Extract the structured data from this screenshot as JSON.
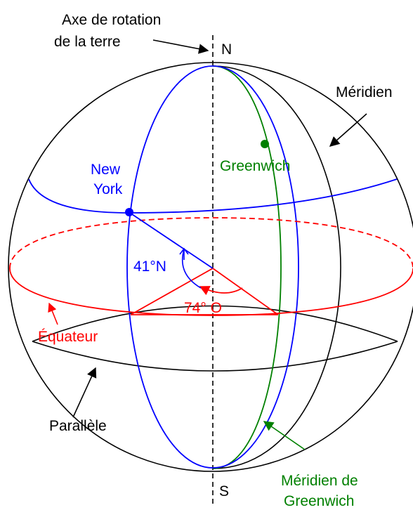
{
  "labels": {
    "axis_line1": "Axe de rotation",
    "axis_line2": "de la terre",
    "north": "N",
    "south": "S",
    "meridian": "Méridien",
    "greenwich": "Greenwich",
    "new_york_line1": "New",
    "new_york_line2": "York",
    "latitude": "41°N",
    "longitude": "74° O",
    "equator": "Équateur",
    "parallel": "Parallèle",
    "greenwich_meridian_line1": "Méridien de",
    "greenwich_meridian_line2": "Greenwich"
  },
  "colors": {
    "outline": "#000000",
    "new_york": "#0000ff",
    "equator": "#ff0000",
    "greenwich": "#008000"
  }
}
